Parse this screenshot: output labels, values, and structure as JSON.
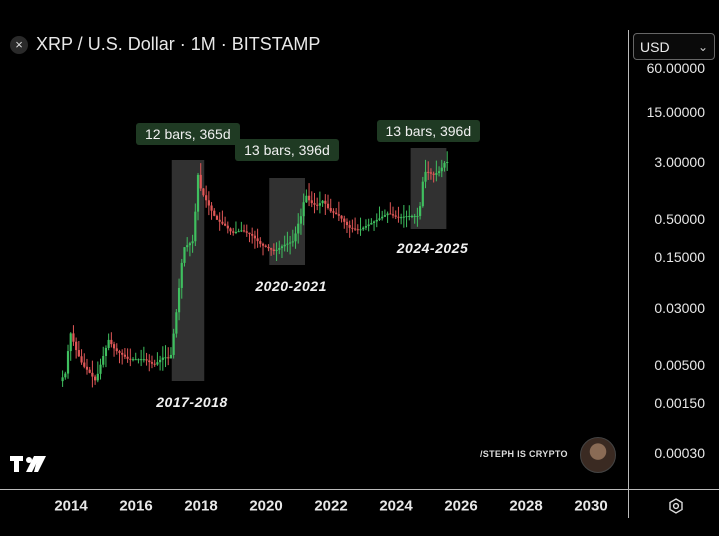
{
  "header": {
    "close_icon": "×",
    "title": "XRP / U.S. Dollar · 1M · BITSTAMP"
  },
  "currency": {
    "value": "USD",
    "chevron": "⌄"
  },
  "watermark": "/STEPH IS CRYPTO",
  "colors": {
    "up": "#3fbf5f",
    "down": "#e05757",
    "highlight": "#3a3a3a",
    "bars_box": "#1f3a23"
  },
  "icons": {
    "logo": "tradingview-logo",
    "settings": "gear-icon",
    "avatar": "avatar"
  },
  "chart_data": {
    "type": "candlestick",
    "scale": "log",
    "y_ticks": [
      "60.00000",
      "15.00000",
      "3.00000",
      "0.50000",
      "0.15000",
      "0.03000",
      "0.00500",
      "0.00150",
      "0.00030"
    ],
    "x_ticks": [
      "2014",
      "2016",
      "2018",
      "2020",
      "2022",
      "2024",
      "2026",
      "2028",
      "2030"
    ],
    "highlighted_periods": [
      {
        "label": "2017-2018",
        "bars": "12 bars, 365d",
        "start": 2017.1,
        "end": 2018.1
      },
      {
        "label": "2020-2021",
        "bars": "13 bars, 396d",
        "start": 2020.1,
        "end": 2021.2
      },
      {
        "label": "2024-2025",
        "bars": "13 bars, 396d",
        "start": 2024.45,
        "end": 2025.55
      }
    ],
    "price_path": [
      [
        2013.7,
        0.003
      ],
      [
        2013.9,
        0.004
      ],
      [
        2014.0,
        0.015
      ],
      [
        2014.2,
        0.008
      ],
      [
        2014.4,
        0.005
      ],
      [
        2014.6,
        0.004
      ],
      [
        2014.8,
        0.003
      ],
      [
        2015.0,
        0.006
      ],
      [
        2015.2,
        0.011
      ],
      [
        2015.4,
        0.008
      ],
      [
        2015.6,
        0.007
      ],
      [
        2015.8,
        0.006
      ],
      [
        2016.0,
        0.006
      ],
      [
        2016.3,
        0.006
      ],
      [
        2016.6,
        0.005
      ],
      [
        2016.9,
        0.0065
      ],
      [
        2017.1,
        0.006
      ],
      [
        2017.3,
        0.03
      ],
      [
        2017.5,
        0.2
      ],
      [
        2017.8,
        0.25
      ],
      [
        2017.95,
        2.0
      ],
      [
        2018.05,
        1.2
      ],
      [
        2018.2,
        0.9
      ],
      [
        2018.5,
        0.5
      ],
      [
        2018.8,
        0.4
      ],
      [
        2019.0,
        0.32
      ],
      [
        2019.3,
        0.35
      ],
      [
        2019.6,
        0.3
      ],
      [
        2019.9,
        0.22
      ],
      [
        2020.1,
        0.2
      ],
      [
        2020.3,
        0.18
      ],
      [
        2020.6,
        0.22
      ],
      [
        2020.9,
        0.25
      ],
      [
        2021.0,
        0.4
      ],
      [
        2021.1,
        0.5
      ],
      [
        2021.25,
        1.1
      ],
      [
        2021.4,
        0.85
      ],
      [
        2021.6,
        0.75
      ],
      [
        2021.8,
        0.9
      ],
      [
        2022.0,
        0.65
      ],
      [
        2022.3,
        0.55
      ],
      [
        2022.6,
        0.38
      ],
      [
        2022.9,
        0.35
      ],
      [
        2023.2,
        0.42
      ],
      [
        2023.5,
        0.5
      ],
      [
        2023.8,
        0.6
      ],
      [
        2024.1,
        0.52
      ],
      [
        2024.4,
        0.55
      ],
      [
        2024.6,
        0.55
      ],
      [
        2024.75,
        0.55
      ],
      [
        2024.9,
        2.2
      ],
      [
        2025.0,
        2.2
      ],
      [
        2025.2,
        2.0
      ],
      [
        2025.4,
        2.3
      ],
      [
        2025.55,
        3.0
      ]
    ]
  }
}
